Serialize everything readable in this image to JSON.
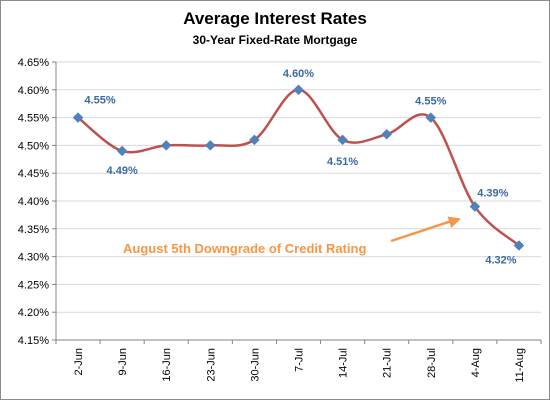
{
  "chart_data": {
    "type": "line",
    "title": "Average Interest Rates",
    "subtitle": "30-Year Fixed-Rate  Mortgage",
    "xlabel": "",
    "ylabel": "",
    "categories": [
      "2-Jun",
      "9-Jun",
      "16-Jun",
      "23-Jun",
      "30-Jun",
      "7-Jul",
      "14-Jul",
      "21-Jul",
      "28-Jul",
      "4-Aug",
      "11-Aug"
    ],
    "series": [
      {
        "values": [
          4.55,
          4.49,
          4.5,
          4.5,
          4.51,
          4.6,
          4.51,
          4.52,
          4.55,
          4.39,
          4.32
        ]
      }
    ],
    "ylim": [
      4.15,
      4.65
    ],
    "yticks": [
      "4.15%",
      "4.20%",
      "4.25%",
      "4.30%",
      "4.35%",
      "4.40%",
      "4.45%",
      "4.50%",
      "4.55%",
      "4.60%",
      "4.65%"
    ],
    "data_labels": [
      {
        "index": 0,
        "text": "4.55%"
      },
      {
        "index": 1,
        "text": "4.49%"
      },
      {
        "index": 5,
        "text": "4.60%"
      },
      {
        "index": 6,
        "text": "4.51%"
      },
      {
        "index": 8,
        "text": "4.55%"
      },
      {
        "index": 9,
        "text": "4.39%"
      },
      {
        "index": 10,
        "text": "4.32%"
      }
    ],
    "annotation": {
      "text": "August 5th Downgrade of Credit Rating",
      "target_index": 9
    },
    "grid": true,
    "legend": "none",
    "colors": {
      "line": "#c0504d",
      "marker": "#4f81bd",
      "data_label": "#3b6aa0",
      "annotation": "#f79646",
      "grid": "#d9d9d9",
      "axis": "#868686"
    }
  }
}
